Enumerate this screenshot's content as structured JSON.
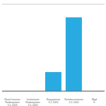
{
  "chart_data": {
    "type": "bar",
    "categories": [
      "Retail Investor\nRedemptions\n3-1-2024",
      "Institutional\nRedemptions\n3-1-2024",
      "Repayments\n3-1-2024",
      "Reimbursements\n3-1-2024",
      "Mgd\n3-"
    ],
    "values": [
      0,
      0,
      2.2,
      8.5,
      0
    ],
    "color": "#29ABE2",
    "ylim": [
      0,
      10
    ],
    "yticks": [
      0,
      1.6666666666666667,
      3.3333333333333335,
      5,
      6.666666666666667,
      8.333333333333334,
      10
    ],
    "grid": true,
    "tick_labels": "x"
  }
}
